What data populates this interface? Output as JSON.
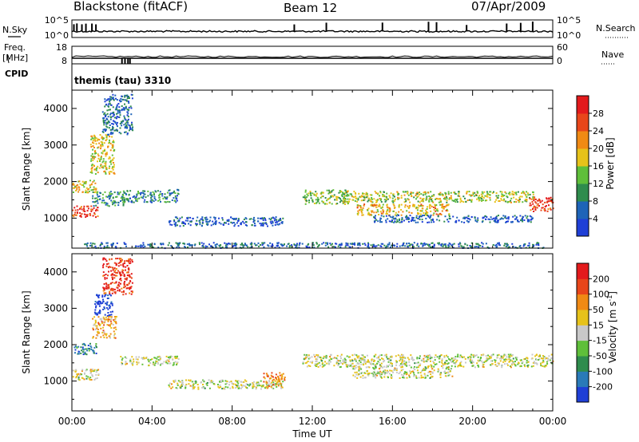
{
  "header": {
    "station": "Blackstone (fitACF)",
    "beam": "Beam 12",
    "date": "07/Apr/2009"
  },
  "labels": {
    "nsky": "N.Sky",
    "nsearch": "N.Search",
    "freq_line1": "Freq.",
    "freq_line2": "[MHz]",
    "nave": "Nave",
    "cpid": "CPID",
    "cpid_name": "themis (tau) 3310",
    "time_axis": "Time UT",
    "slant_range": "Slant Range [km]"
  },
  "chart_data": [
    {
      "type": "line",
      "title": "N.Sky / N.Search",
      "left_ticks": [
        "10^5",
        "10^0"
      ],
      "right_ticks": [
        "10^5",
        "10^0"
      ],
      "x_range_hours": [
        0,
        24
      ],
      "baseline_level": 0.35,
      "spikes_hours": [
        0.1,
        0.25,
        0.5,
        0.7,
        1.0,
        1.2,
        11.1,
        12.7,
        15.5,
        17.8,
        18.2,
        19.7,
        21.7,
        22.4,
        23.0
      ]
    },
    {
      "type": "line",
      "title": "Freq. / Nave",
      "left_ticks": [
        "18",
        "8"
      ],
      "right_ticks": [
        "60",
        "0"
      ],
      "freq_mhz": 10,
      "nave": 20,
      "cpid_gap_hours": [
        2.5,
        2.9
      ]
    },
    {
      "type": "heatmap",
      "title": "Power",
      "xlabel": "Time UT",
      "ylabel": "Slant Range [km]",
      "x_ticks": [
        "00:00",
        "04:00",
        "08:00",
        "12:00",
        "16:00",
        "20:00",
        "00:00"
      ],
      "x_range_hours": [
        0,
        24
      ],
      "y_ticks": [
        1000,
        2000,
        3000,
        4000
      ],
      "y_range_km": [
        180,
        4500
      ],
      "colorbar_label": "Power [dB]",
      "colorbar_ticks": [
        4,
        8,
        12,
        16,
        20,
        24,
        28
      ],
      "colorbar_range": [
        0,
        32
      ],
      "colors": [
        "#1f3fd6",
        "#1e64b8",
        "#2f8c4d",
        "#5fbf3a",
        "#e6c21a",
        "#f08a14",
        "#e8461a",
        "#e31a1c"
      ],
      "regions": [
        {
          "t": [
            0.0,
            1.3
          ],
          "r": [
            1050,
            1350
          ],
          "level": 0.85
        },
        {
          "t": [
            0.0,
            1.2
          ],
          "r": [
            1700,
            2050
          ],
          "level": 0.6
        },
        {
          "t": [
            0.9,
            2.1
          ],
          "r": [
            2200,
            3300
          ],
          "level": 0.55
        },
        {
          "t": [
            1.5,
            3.0
          ],
          "r": [
            3300,
            4400
          ],
          "level": 0.2
        },
        {
          "t": [
            1.0,
            2.6
          ],
          "r": [
            1350,
            1750
          ],
          "level": 0.3
        },
        {
          "t": [
            2.5,
            5.3
          ],
          "r": [
            1450,
            1800
          ],
          "level": 0.25
        },
        {
          "t": [
            4.8,
            10.5
          ],
          "r": [
            800,
            1050
          ],
          "level": 0.15
        },
        {
          "t": [
            11.5,
            13.8
          ],
          "r": [
            1400,
            1800
          ],
          "level": 0.45
        },
        {
          "t": [
            13.5,
            23.0
          ],
          "r": [
            1450,
            1750
          ],
          "level": 0.5
        },
        {
          "t": [
            14.2,
            18.8
          ],
          "r": [
            1100,
            1400
          ],
          "level": 0.6
        },
        {
          "t": [
            15.0,
            23.0
          ],
          "r": [
            900,
            1100
          ],
          "level": 0.15
        },
        {
          "t": [
            22.8,
            24.0
          ],
          "r": [
            1200,
            1600
          ],
          "level": 0.85
        },
        {
          "t": [
            0.5,
            23.5
          ],
          "r": [
            200,
            350
          ],
          "level": 0.2
        }
      ]
    },
    {
      "type": "heatmap",
      "title": "Velocity",
      "xlabel": "Time UT",
      "ylabel": "Slant Range [km]",
      "x_ticks": [
        "00:00",
        "04:00",
        "08:00",
        "12:00",
        "16:00",
        "20:00",
        "00:00"
      ],
      "x_range_hours": [
        0,
        24
      ],
      "y_ticks": [
        1000,
        2000,
        3000,
        4000
      ],
      "y_range_km": [
        180,
        4500
      ],
      "colorbar_label": "Velocity [m s^-1]",
      "colorbar_ticks": [
        "200",
        "100",
        "50",
        "15",
        "-15",
        "-50",
        "-100",
        "-200"
      ],
      "colors": [
        "#1f3fd6",
        "#2a7ab8",
        "#2f8c4d",
        "#5fbf3a",
        "#c8c8c8",
        "#e6c21a",
        "#f08a14",
        "#e8461a",
        "#e31a1c"
      ],
      "regions": [
        {
          "t": [
            0.0,
            1.2
          ],
          "r": [
            1750,
            2050
          ],
          "level": 0.2
        },
        {
          "t": [
            0.0,
            1.3
          ],
          "r": [
            1050,
            1350
          ],
          "level": 0.5
        },
        {
          "t": [
            1.1,
            2.0
          ],
          "r": [
            2800,
            3400
          ],
          "level": 0.0
        },
        {
          "t": [
            1.0,
            2.2
          ],
          "r": [
            2200,
            2800
          ],
          "level": 0.65
        },
        {
          "t": [
            2.4,
            5.3
          ],
          "r": [
            1450,
            1700
          ],
          "level": 0.5
        },
        {
          "t": [
            4.8,
            10.5
          ],
          "r": [
            800,
            1050
          ],
          "level": 0.5
        },
        {
          "t": [
            9.5,
            10.6
          ],
          "r": [
            850,
            1250
          ],
          "level": 0.7
        },
        {
          "t": [
            11.5,
            24.0
          ],
          "r": [
            1400,
            1750
          ],
          "level": 0.5
        },
        {
          "t": [
            14.0,
            19.0
          ],
          "r": [
            1100,
            1400
          ],
          "level": 0.5
        },
        {
          "t": [
            1.5,
            3.0
          ],
          "r": [
            3400,
            4400
          ],
          "level": 0.9
        }
      ]
    }
  ]
}
